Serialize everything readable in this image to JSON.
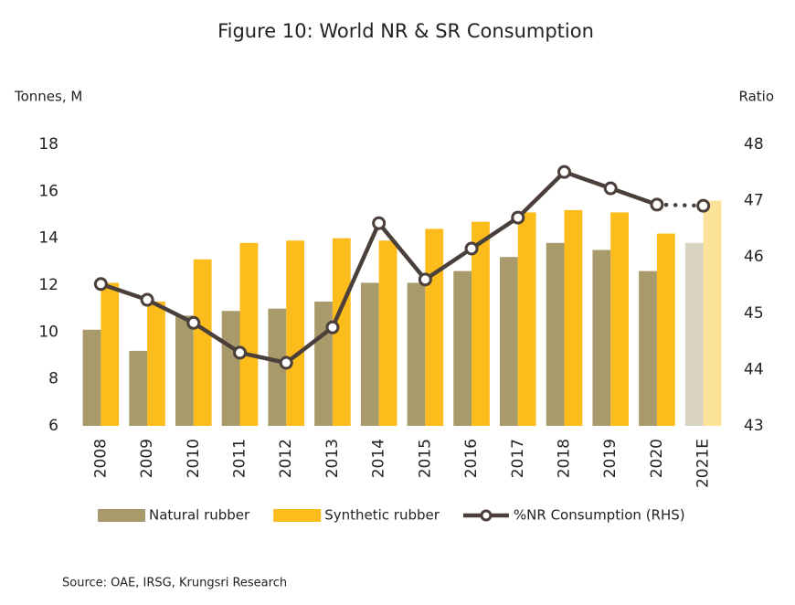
{
  "chart_data": {
    "type": "bar-line",
    "title": "Figure 10: World NR & SR Consumption",
    "y_label": "Tonnes, M",
    "y2_label": "Ratio",
    "categories": [
      "2008",
      "2009",
      "2010",
      "2011",
      "2012",
      "2013",
      "2014",
      "2015",
      "2016",
      "2017",
      "2018",
      "2019",
      "2020",
      "2021E"
    ],
    "series": [
      {
        "name": "Natural rubber",
        "type": "bar",
        "color": "#a89a6a",
        "projected_color": "#d9d4c2",
        "values": [
          10.1,
          9.2,
          10.7,
          10.9,
          11.0,
          11.3,
          12.1,
          12.1,
          12.6,
          13.2,
          13.8,
          13.5,
          12.6,
          13.8
        ]
      },
      {
        "name": "Synthetic rubber",
        "type": "bar",
        "color": "#fbbc1c",
        "projected_color": "#fde39a",
        "values": [
          12.1,
          11.3,
          13.1,
          13.8,
          13.9,
          14.0,
          13.9,
          14.4,
          14.7,
          15.1,
          15.2,
          15.1,
          14.2,
          15.6
        ]
      },
      {
        "name": "%NR Consumption (RHS)",
        "type": "line",
        "axis": "y2",
        "color": "#4a3f3b",
        "last_segment_style": "dotted",
        "values": [
          45.52,
          45.24,
          44.83,
          44.3,
          44.12,
          44.75,
          46.6,
          45.6,
          46.15,
          46.7,
          47.51,
          47.22,
          46.93,
          46.91
        ]
      }
    ],
    "ylim": [
      6,
      18
    ],
    "yticks": [
      6,
      8,
      10,
      12,
      14,
      16,
      18
    ],
    "y2lim": [
      43,
      48
    ],
    "y2ticks": [
      43,
      44,
      45,
      46,
      47,
      48
    ],
    "source": "Source: OAE, IRSG, Krungsri Research"
  }
}
